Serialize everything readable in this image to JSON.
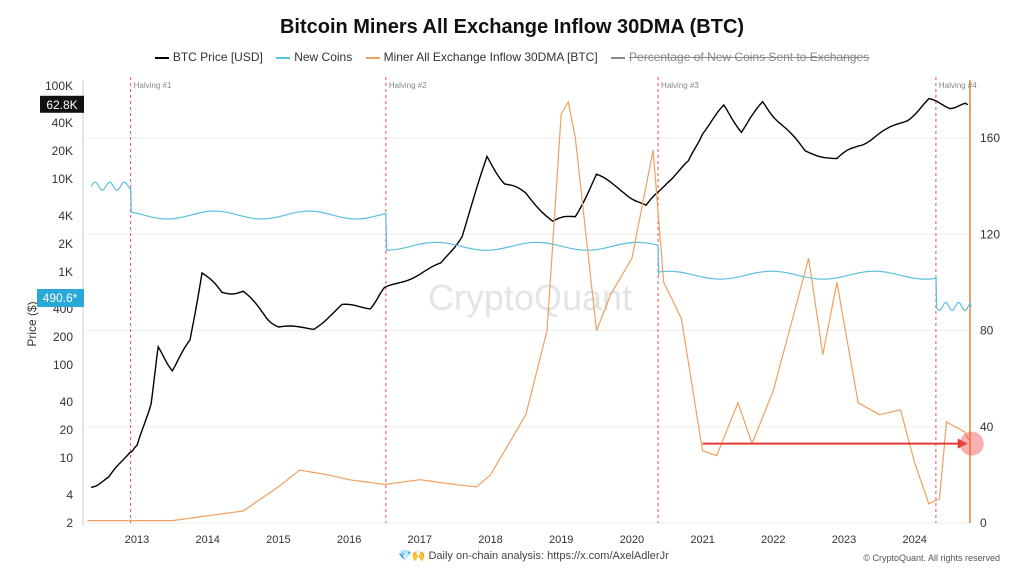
{
  "chart_data": {
    "type": "line",
    "title": "Bitcoin Miners All Exchange Inflow 30DMA (BTC)",
    "ylabel": "Price ($)",
    "left_axis": {
      "scale": "log",
      "ticks": [
        2,
        4,
        10,
        20,
        40,
        100,
        200,
        400,
        1000,
        2000,
        4000,
        10000,
        20000,
        40000,
        100000
      ],
      "tick_labels": [
        "2",
        "4",
        "10",
        "20",
        "40",
        "100",
        "200",
        "400",
        "1K",
        "2K",
        "4K",
        "10K",
        "20K",
        "40K",
        "100K"
      ]
    },
    "right_axis": {
      "ticks": [
        0,
        40,
        80,
        120,
        160
      ],
      "range": [
        0,
        180
      ]
    },
    "x_ticks": [
      2013,
      2014,
      2015,
      2016,
      2017,
      2018,
      2019,
      2020,
      2021,
      2022,
      2023,
      2024
    ],
    "halvings": [
      {
        "label": "Halving #1",
        "x": 2012.91
      },
      {
        "label": "Halving #2",
        "x": 2016.52
      },
      {
        "label": "Halving #3",
        "x": 2020.37
      },
      {
        "label": "Halving #4",
        "x": 2024.3
      }
    ],
    "series": [
      {
        "name": "BTC Price [USD]",
        "axis": "left",
        "color": "#000000",
        "x": [
          2012.35,
          2012.6,
          2012.9,
          2013.0,
          2013.2,
          2013.3,
          2013.5,
          2013.75,
          2013.92,
          2014.2,
          2014.5,
          2014.8,
          2015.0,
          2015.5,
          2015.9,
          2016.3,
          2016.5,
          2016.9,
          2017.3,
          2017.6,
          2017.95,
          2018.2,
          2018.5,
          2018.88,
          2019.2,
          2019.5,
          2019.9,
          2020.2,
          2020.5,
          2020.8,
          2021.0,
          2021.3,
          2021.55,
          2021.85,
          2022.1,
          2022.45,
          2022.9,
          2023.2,
          2023.5,
          2023.9,
          2024.2,
          2024.5,
          2024.75
        ],
        "values": [
          5,
          6,
          12,
          13,
          40,
          150,
          90,
          180,
          1000,
          600,
          620,
          350,
          250,
          250,
          430,
          420,
          650,
          900,
          1200,
          2500,
          17000,
          9000,
          7000,
          3500,
          4000,
          11000,
          7200,
          5000,
          9500,
          15000,
          32000,
          60000,
          33000,
          66000,
          40000,
          20000,
          16500,
          23000,
          30000,
          44000,
          70000,
          60000,
          62800
        ]
      },
      {
        "name": "New Coins",
        "axis": "right",
        "color": "#5bc0de",
        "x": [
          2012.35,
          2012.91,
          2012.92,
          2016.52,
          2016.53,
          2020.37,
          2020.38,
          2024.3,
          2024.31,
          2024.8
        ],
        "values": [
          140,
          140,
          128,
          128,
          115,
          115,
          103,
          103,
          90,
          90
        ]
      },
      {
        "name": "Miner All Exchange Inflow 30DMA [BTC]",
        "axis": "right",
        "color": "#f0a060",
        "x": [
          2012.3,
          2013.5,
          2014.0,
          2014.5,
          2015.0,
          2015.3,
          2015.7,
          2016.0,
          2016.5,
          2017.0,
          2017.5,
          2017.8,
          2018.0,
          2018.5,
          2018.8,
          2019.0,
          2019.1,
          2019.2,
          2019.5,
          2019.7,
          2020.0,
          2020.3,
          2020.45,
          2020.7,
          2021.0,
          2021.2,
          2021.5,
          2021.7,
          2022.0,
          2022.5,
          2022.7,
          2022.9,
          2023.2,
          2023.5,
          2023.8,
          2024.0,
          2024.2,
          2024.35,
          2024.45,
          2024.7,
          2024.8
        ],
        "values": [
          1,
          1,
          3,
          5,
          15,
          22,
          20,
          18,
          16,
          18,
          16,
          15,
          20,
          45,
          80,
          170,
          175,
          160,
          80,
          95,
          110,
          155,
          100,
          85,
          30,
          28,
          50,
          33,
          55,
          110,
          70,
          100,
          50,
          45,
          47,
          25,
          8,
          10,
          42,
          38,
          33
        ]
      },
      {
        "name": "Percentage of New Coins Sent to Exchanges",
        "axis": "right",
        "color": "#888888",
        "hidden": true
      }
    ],
    "annotations": {
      "price_badge": "62.8K",
      "price_badge_value": 62800,
      "secondary_badge": "490.6*",
      "arrow": {
        "from_x": 2021.0,
        "to_x": 2024.75,
        "value": 33
      },
      "watermark": "CryptoQuant"
    },
    "legend_placement": "top",
    "grid": true
  },
  "footer": {
    "left_text": "Daily on-chain analysis: ",
    "link": "https://x.com/AxelAdlerJr",
    "right_text": "© CryptoQuant. All rights reserved",
    "emoji": "💎🙌"
  }
}
